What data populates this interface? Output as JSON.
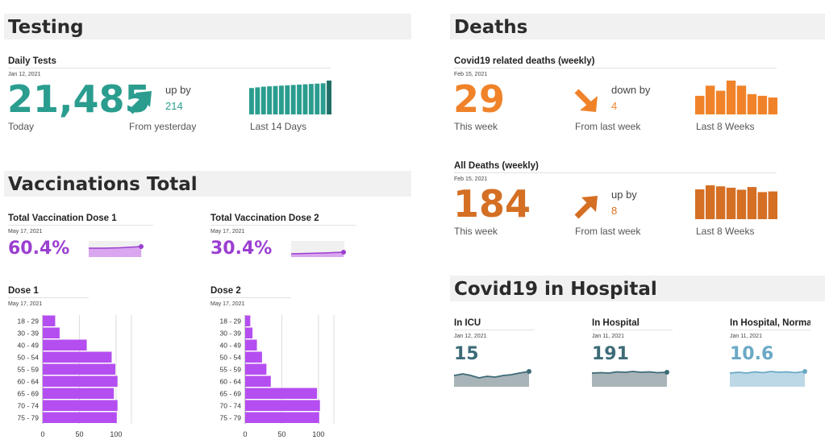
{
  "colors": {
    "teal": "#2a9d8f",
    "orange": "#f0832a",
    "dark_orange": "#d46f24",
    "purple": "#9b3fd1",
    "bar_purple": "#b54ef0",
    "slate": "#3d6b78",
    "light_blue": "#6aa9c6"
  },
  "testing": {
    "header": "Testing",
    "daily": {
      "title": "Daily Tests",
      "date": "Jan 12, 2021",
      "value": "21,485",
      "value_label": "Today",
      "change_dir": "up by",
      "change_val": "214",
      "change_label": "From yesterday",
      "spark_label": "Last 14 Days",
      "spark_values": [
        78,
        80,
        82,
        83,
        84,
        85,
        86,
        87,
        88,
        89,
        90,
        91,
        92,
        100
      ]
    }
  },
  "deaths": {
    "header": "Deaths",
    "weekly_covid": {
      "title": "Covid19 related deaths (weekly)",
      "date": "Feb 15, 2021",
      "value": "29",
      "value_label": "This week",
      "change_dir": "down by",
      "change_val": "4",
      "change_label": "From last week",
      "spark_label": "Last 8 Weeks",
      "spark_values": [
        55,
        85,
        70,
        100,
        85,
        60,
        55,
        50
      ]
    },
    "weekly_all": {
      "title": "All Deaths (weekly)",
      "date": "Feb 15, 2021",
      "value": "184",
      "value_label": "This week",
      "change_dir": "up by",
      "change_val": "8",
      "change_label": "From last week",
      "spark_label": "Last 8 Weeks",
      "spark_values": [
        88,
        100,
        97,
        93,
        87,
        95,
        80,
        82
      ]
    }
  },
  "vaccinations": {
    "header": "Vaccinations Total",
    "dose1_total": {
      "title": "Total Vaccination Dose 1",
      "date": "May 17, 2021",
      "value": "60.4%"
    },
    "dose2_total": {
      "title": "Total Vaccination Dose 2",
      "date": "May 17, 2021",
      "value": "30.4%"
    },
    "dose1_chart": {
      "title": "Dose 1",
      "date": "May 17, 2021"
    },
    "dose2_chart": {
      "title": "Dose 2",
      "date": "May 17, 2021"
    }
  },
  "hospital": {
    "header": "Covid19 in Hospital",
    "icu": {
      "title": "In ICU",
      "date": "Jan 12, 2021",
      "value": "15"
    },
    "in_hospital": {
      "title": "In Hospital",
      "date": "Jan 11, 2021",
      "value": "191"
    },
    "normal": {
      "title": "In Hospital, Normal",
      "date": "Jan 11, 2021",
      "value": "10.6"
    }
  },
  "chart_data": [
    {
      "type": "bar",
      "title": "Dose 1",
      "orientation": "horizontal",
      "categories": [
        "18 - 29",
        "30 - 39",
        "40 - 49",
        "50 - 54",
        "55 - 59",
        "60 - 64",
        "65 - 69",
        "70 - 74",
        "75 - 79"
      ],
      "values": [
        17,
        23,
        60,
        94,
        99,
        102,
        97,
        102,
        101
      ],
      "xticks": [
        "0",
        "50",
        "100"
      ],
      "xlim": [
        0,
        110
      ]
    },
    {
      "type": "bar",
      "title": "Dose 2",
      "orientation": "horizontal",
      "categories": [
        "18 - 29",
        "30 - 39",
        "40 - 49",
        "50 - 54",
        "55 - 59",
        "60 - 64",
        "65 - 69",
        "70 - 74",
        "75 - 79"
      ],
      "values": [
        7,
        10,
        16,
        23,
        29,
        35,
        98,
        102,
        101
      ],
      "xticks": [
        "0",
        "50",
        "100"
      ],
      "xlim": [
        0,
        110
      ]
    }
  ]
}
